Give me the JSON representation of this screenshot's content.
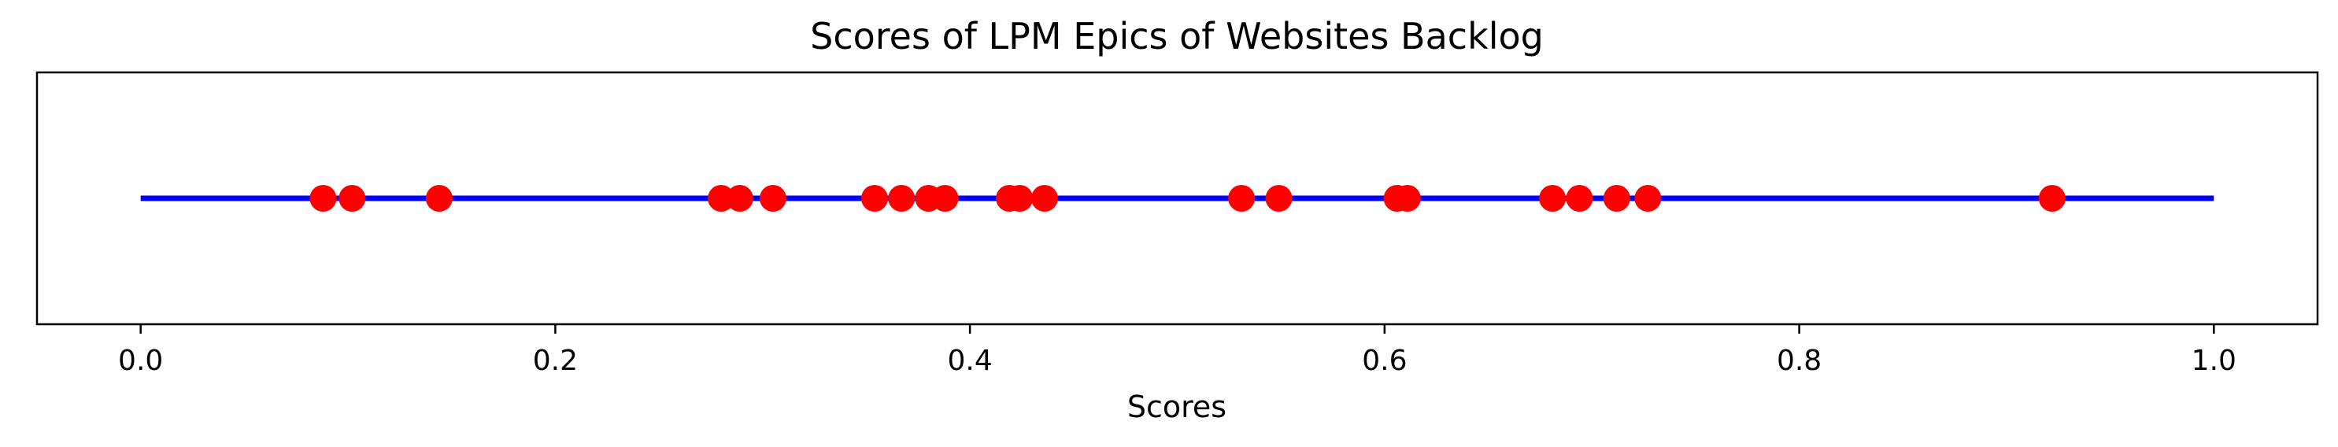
{
  "chart_data": {
    "type": "scatter",
    "title": "Scores of LPM Epics of Websites Backlog",
    "xlabel": "Scores",
    "ylabel": "",
    "xlim": [
      -0.05,
      1.05
    ],
    "grid": false,
    "baseline": {
      "from": 0.0,
      "to": 1.0,
      "color": "#0000ff"
    },
    "x_ticks": [
      0.0,
      0.2,
      0.4,
      0.6,
      0.8,
      1.0
    ],
    "x_tick_labels": [
      "0.0",
      "0.2",
      "0.4",
      "0.6",
      "0.8",
      "1.0"
    ],
    "point_color": "#ff0000",
    "x": [
      0.088,
      0.102,
      0.144,
      0.28,
      0.289,
      0.305,
      0.354,
      0.367,
      0.38,
      0.388,
      0.419,
      0.424,
      0.436,
      0.531,
      0.549,
      0.606,
      0.611,
      0.681,
      0.694,
      0.712,
      0.727,
      0.922
    ]
  }
}
